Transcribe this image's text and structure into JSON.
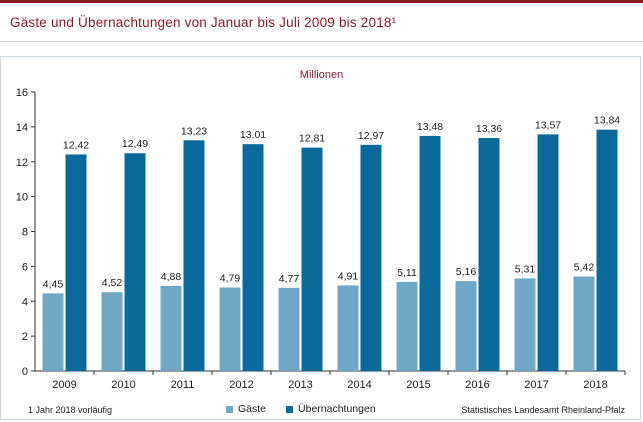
{
  "header": {
    "title": "Gäste und Übernachtungen von Januar bis Juli 2009 bis 2018¹"
  },
  "colors": {
    "brand": "#8b1a2b",
    "gaeste": "#6fa8c7",
    "uebernachtungen": "#0a6a9c"
  },
  "chart_data": {
    "type": "bar",
    "title": "Gäste und Übernachtungen von Januar bis Juli 2009 bis 2018¹",
    "unit": "Millionen",
    "categories": [
      "2009",
      "2010",
      "2011",
      "2012",
      "2013",
      "2014",
      "2015",
      "2016",
      "2017",
      "2018"
    ],
    "series": [
      {
        "name": "Gäste",
        "values": [
          4.45,
          4.52,
          4.88,
          4.79,
          4.77,
          4.91,
          5.11,
          5.16,
          5.31,
          5.42
        ],
        "labels": [
          "4,45",
          "4,52",
          "4,88",
          "4,79",
          "4,77",
          "4,91",
          "5,11",
          "5,16",
          "5,31",
          "5,42"
        ]
      },
      {
        "name": "Übernachtungen",
        "values": [
          12.42,
          12.49,
          13.23,
          13.01,
          12.81,
          12.97,
          13.48,
          13.36,
          13.57,
          13.84
        ],
        "labels": [
          "12,42",
          "12,49",
          "13,23",
          "13,01",
          "12,81",
          "12,97",
          "13,48",
          "13,36",
          "13,57",
          "13,84"
        ]
      }
    ],
    "ylim": [
      0,
      16
    ],
    "yticks": [
      0,
      2,
      4,
      6,
      8,
      10,
      12,
      14,
      16
    ],
    "grid": false,
    "legend": "bottom"
  },
  "footer": {
    "footnote": "1 Jahr 2018 vorläufig",
    "source": "Statistisches Landesamt Rheinland-Pfalz"
  }
}
